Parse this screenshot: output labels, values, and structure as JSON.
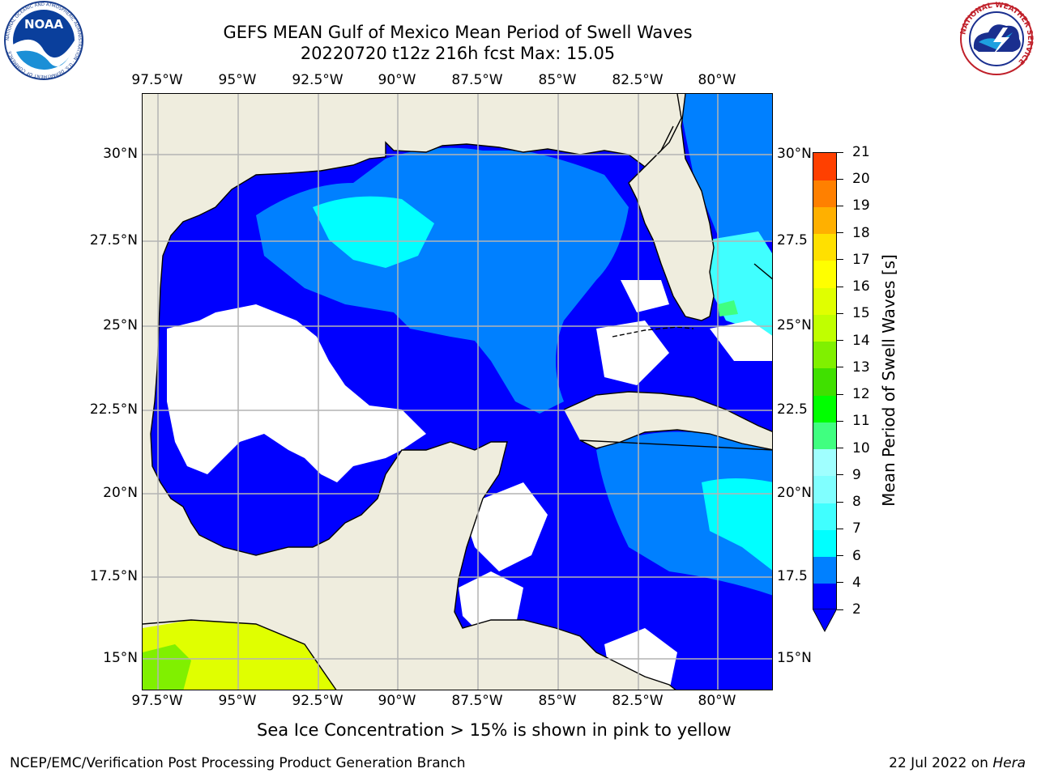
{
  "title_line1": "GEFS MEAN Gulf of Mexico Mean Period of Swell Waves",
  "title_line2": "20220720 t12z 216h fcst   Max: 15.05",
  "footnote": "Sea Ice Concentration > 15% is shown in pink to yellow",
  "credit_left": "NCEP/EMC/Verification Post Processing Product Generation Branch",
  "credit_right_date": "22 Jul 2022 on ",
  "credit_right_machine": "Hera",
  "logos": {
    "left": "noaa-logo",
    "right": "nws-logo",
    "noaa_text": "NOAA",
    "noaa_ring_text": "NATIONAL OCEANIC AND ATMOSPHERIC ADMINISTRATION · U.S. DEPARTMENT OF COMMERCE",
    "nws_ring_text": "NATIONAL WEATHER SERVICE"
  },
  "map": {
    "lon_labels": [
      "97.5°W",
      "95°W",
      "92.5°W",
      "90°W",
      "87.5°W",
      "85°W",
      "82.5°W",
      "80°W"
    ],
    "lat_labels_left": [
      "30°N",
      "27.5°N",
      "25°N",
      "22.5°N",
      "20°N",
      "17.5°N",
      "15°N"
    ],
    "lat_labels_right": [
      "30°N",
      "27.5",
      "25°N",
      "22.5",
      "20°N",
      "17.5",
      "15°N"
    ],
    "colors": {
      "land": "#efedde",
      "coast": "#000000",
      "grid": "#b4b4b4",
      "nodata": "#ffffff"
    }
  },
  "colorbar": {
    "label": "Mean Period of Swell Waves [s]",
    "ticks": [
      "2",
      "4",
      "6",
      "7",
      "8",
      "9",
      "10",
      "11",
      "12",
      "13",
      "14",
      "15",
      "16",
      "17",
      "18",
      "19",
      "20",
      "21"
    ],
    "colors": [
      "#0000ff",
      "#0080ff",
      "#00ffff",
      "#40ffff",
      "#80ffff",
      "#a0ffff",
      "#40ff80",
      "#00ff00",
      "#40e000",
      "#80f000",
      "#c0ff00",
      "#e0ff00",
      "#ffff00",
      "#ffe000",
      "#ffb000",
      "#ff8000",
      "#ff4000",
      "#ff0000"
    ],
    "under_color": "#0000ff"
  }
}
